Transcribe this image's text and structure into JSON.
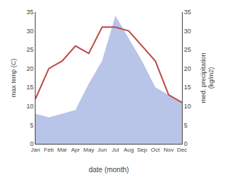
{
  "chart_data": {
    "type": "line",
    "xlabel": "date (month)",
    "ylabel": "max temp (C)",
    "y2label": "med. precipitation\n(kg/m2)",
    "categories": [
      "Jan",
      "Feb",
      "Mar",
      "Apr",
      "May",
      "Jun",
      "Jul",
      "Aug",
      "Sep",
      "Oct",
      "Nov",
      "Dec"
    ],
    "series": [
      {
        "type": "area",
        "axis": "y2",
        "color": "#b8c4e8",
        "values": [
          8,
          7,
          8,
          9,
          16,
          22,
          34,
          28,
          22,
          15,
          13,
          11
        ]
      },
      {
        "type": "line",
        "color": "#b94a48",
        "values": [
          12,
          20,
          22,
          26,
          24,
          31,
          31,
          30,
          26,
          22,
          13,
          11
        ]
      }
    ],
    "ylim": [
      0,
      35
    ],
    "yticks": [
      0,
      5,
      10,
      15,
      20,
      25,
      30,
      35
    ],
    "y2lim": [
      0,
      35
    ],
    "y2ticks": [
      0,
      5,
      10,
      15,
      20,
      25,
      30,
      35
    ],
    "grid": false
  }
}
